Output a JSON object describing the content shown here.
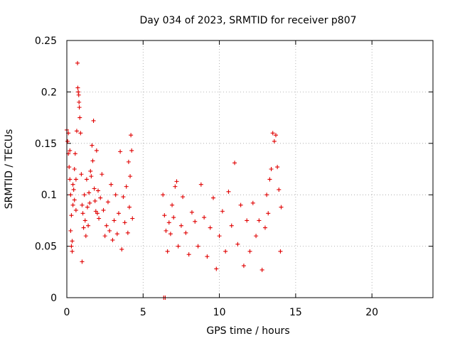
{
  "chart_data": {
    "type": "scatter",
    "title": "Day 034 of 2023, SRMTID for receiver p807",
    "xlabel": "GPS time / hours",
    "ylabel": "SRMTID / TECUs",
    "xlim": [
      0,
      24
    ],
    "ylim": [
      0,
      0.25
    ],
    "x_ticks": [
      0,
      5,
      10,
      15,
      20
    ],
    "x_tick_labels": [
      "0",
      "5",
      "10",
      "15",
      "20"
    ],
    "y_ticks": [
      0,
      0.05,
      0.1,
      0.15,
      0.2,
      0.25
    ],
    "y_tick_labels": [
      "0",
      "0.05",
      "0.1",
      "0.15",
      "0.2",
      "0.25"
    ],
    "grid": true,
    "marker": "+",
    "series": [
      {
        "name": "SRMTID",
        "color": "#e00000",
        "points": [
          [
            0.0,
            0.163
          ],
          [
            0.05,
            0.152
          ],
          [
            0.1,
            0.14
          ],
          [
            0.1,
            0.16
          ],
          [
            0.15,
            0.127
          ],
          [
            0.2,
            0.143
          ],
          [
            0.2,
            0.115
          ],
          [
            0.25,
            0.1
          ],
          [
            0.25,
            0.065
          ],
          [
            0.3,
            0.08
          ],
          [
            0.3,
            0.05
          ],
          [
            0.35,
            0.045
          ],
          [
            0.35,
            0.055
          ],
          [
            0.4,
            0.09
          ],
          [
            0.4,
            0.11
          ],
          [
            0.45,
            0.105
          ],
          [
            0.5,
            0.125
          ],
          [
            0.5,
            0.095
          ],
          [
            0.55,
            0.14
          ],
          [
            0.6,
            0.115
          ],
          [
            0.6,
            0.085
          ],
          [
            0.65,
            0.162
          ],
          [
            0.7,
            0.228
          ],
          [
            0.72,
            0.204
          ],
          [
            0.75,
            0.2
          ],
          [
            0.78,
            0.197
          ],
          [
            0.8,
            0.19
          ],
          [
            0.82,
            0.185
          ],
          [
            0.85,
            0.175
          ],
          [
            0.9,
            0.16
          ],
          [
            0.95,
            0.12
          ],
          [
            1.0,
            0.09
          ],
          [
            1.0,
            0.035
          ],
          [
            1.05,
            0.082
          ],
          [
            1.1,
            0.068
          ],
          [
            1.15,
            0.1
          ],
          [
            1.2,
            0.075
          ],
          [
            1.25,
            0.06
          ],
          [
            1.3,
            0.115
          ],
          [
            1.35,
            0.088
          ],
          [
            1.4,
            0.07
          ],
          [
            1.45,
            0.102
          ],
          [
            1.5,
            0.092
          ],
          [
            1.55,
            0.123
          ],
          [
            1.6,
            0.118
          ],
          [
            1.65,
            0.148
          ],
          [
            1.7,
            0.133
          ],
          [
            1.75,
            0.172
          ],
          [
            1.8,
            0.106
          ],
          [
            1.85,
            0.094
          ],
          [
            1.9,
            0.084
          ],
          [
            1.95,
            0.143
          ],
          [
            2.0,
            0.082
          ],
          [
            2.05,
            0.104
          ],
          [
            2.1,
            0.077
          ],
          [
            2.2,
            0.097
          ],
          [
            2.3,
            0.12
          ],
          [
            2.4,
            0.085
          ],
          [
            2.5,
            0.06
          ],
          [
            2.6,
            0.07
          ],
          [
            2.7,
            0.093
          ],
          [
            2.8,
            0.065
          ],
          [
            2.9,
            0.11
          ],
          [
            3.0,
            0.056
          ],
          [
            3.1,
            0.075
          ],
          [
            3.2,
            0.1
          ],
          [
            3.3,
            0.062
          ],
          [
            3.4,
            0.082
          ],
          [
            3.5,
            0.142
          ],
          [
            3.6,
            0.047
          ],
          [
            3.7,
            0.098
          ],
          [
            3.8,
            0.073
          ],
          [
            3.9,
            0.108
          ],
          [
            4.0,
            0.063
          ],
          [
            4.05,
            0.132
          ],
          [
            4.1,
            0.088
          ],
          [
            4.15,
            0.118
          ],
          [
            4.2,
            0.158
          ],
          [
            4.25,
            0.143
          ],
          [
            4.3,
            0.077
          ],
          [
            6.3,
            0.1
          ],
          [
            6.4,
            0.08
          ],
          [
            6.5,
            0.065
          ],
          [
            6.6,
            0.045
          ],
          [
            6.7,
            0.073
          ],
          [
            6.8,
            0.062
          ],
          [
            6.9,
            0.09
          ],
          [
            7.0,
            0.078
          ],
          [
            7.1,
            0.108
          ],
          [
            7.2,
            0.113
          ],
          [
            7.3,
            0.05
          ],
          [
            7.5,
            0.07
          ],
          [
            7.6,
            0.098
          ],
          [
            7.8,
            0.063
          ],
          [
            8.0,
            0.042
          ],
          [
            8.2,
            0.083
          ],
          [
            8.4,
            0.074
          ],
          [
            8.6,
            0.05
          ],
          [
            8.8,
            0.11
          ],
          [
            9.0,
            0.078
          ],
          [
            9.2,
            0.04
          ],
          [
            9.4,
            0.068
          ],
          [
            9.6,
            0.097
          ],
          [
            9.8,
            0.028
          ],
          [
            10.0,
            0.06
          ],
          [
            10.2,
            0.084
          ],
          [
            10.4,
            0.045
          ],
          [
            10.6,
            0.103
          ],
          [
            10.8,
            0.07
          ],
          [
            11.0,
            0.131
          ],
          [
            11.2,
            0.052
          ],
          [
            11.4,
            0.09
          ],
          [
            11.6,
            0.031
          ],
          [
            11.8,
            0.075
          ],
          [
            12.0,
            0.045
          ],
          [
            12.2,
            0.092
          ],
          [
            12.4,
            0.06
          ],
          [
            12.6,
            0.075
          ],
          [
            12.8,
            0.027
          ],
          [
            13.0,
            0.068
          ],
          [
            13.1,
            0.1
          ],
          [
            13.2,
            0.082
          ],
          [
            13.3,
            0.115
          ],
          [
            13.4,
            0.125
          ],
          [
            13.5,
            0.16
          ],
          [
            13.6,
            0.152
          ],
          [
            13.7,
            0.158
          ],
          [
            13.8,
            0.127
          ],
          [
            13.9,
            0.105
          ],
          [
            14.0,
            0.045
          ],
          [
            14.05,
            0.088
          ],
          [
            6.35,
            0.0
          ],
          [
            6.45,
            0.0
          ]
        ]
      }
    ]
  }
}
